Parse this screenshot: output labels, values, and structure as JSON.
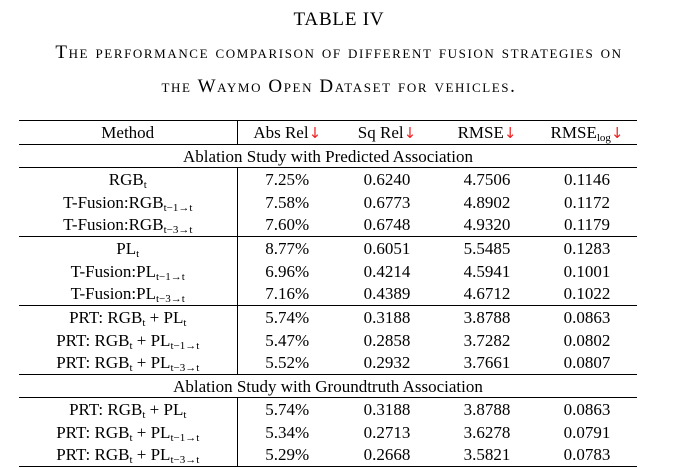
{
  "accent_red": "#ee2222",
  "title": "TABLE IV",
  "caption": {
    "line1": "The performance comparison of different fusion strategies on",
    "line2": "the Waymo Open Dataset for vehicles."
  },
  "table": {
    "columns": [
      {
        "label": "Method"
      },
      {
        "label": "Abs Rel",
        "arrow": "↓"
      },
      {
        "label": "Sq Rel",
        "arrow": "↓"
      },
      {
        "label": "RMSE",
        "arrow": "↓"
      },
      {
        "label": "RMSE",
        "sub": "log",
        "arrow": "↓"
      }
    ],
    "rows": [
      {
        "type": "section",
        "label": "Ablation Study with Predicted Association"
      },
      {
        "type": "data",
        "method": [
          [
            "RGB"
          ],
          [
            "t",
            "sub"
          ]
        ],
        "values": [
          "7.25%",
          "0.6240",
          "4.7506",
          "0.1146"
        ]
      },
      {
        "type": "data",
        "method": [
          [
            "T-Fusion:RGB"
          ],
          [
            "t−1→t",
            "sub"
          ]
        ],
        "values": [
          "7.58%",
          "0.6773",
          "4.8902",
          "0.1172"
        ]
      },
      {
        "type": "data",
        "method": [
          [
            "T-Fusion:RGB"
          ],
          [
            "t−3→t",
            "sub"
          ]
        ],
        "values": [
          "7.60%",
          "0.6748",
          "4.9320",
          "0.1179"
        ],
        "rule_below": true
      },
      {
        "type": "data",
        "method": [
          [
            "PL"
          ],
          [
            "t",
            "sub"
          ]
        ],
        "values": [
          "8.77%",
          "0.6051",
          "5.5485",
          "0.1283"
        ]
      },
      {
        "type": "data",
        "method": [
          [
            "T-Fusion:PL"
          ],
          [
            "t−1→t",
            "sub"
          ]
        ],
        "values": [
          "6.96%",
          "0.4214",
          "4.5941",
          "0.1001"
        ]
      },
      {
        "type": "data",
        "method": [
          [
            "T-Fusion:PL"
          ],
          [
            "t−3→t",
            "sub"
          ]
        ],
        "values": [
          "7.16%",
          "0.4389",
          "4.6712",
          "0.1022"
        ],
        "rule_below": true
      },
      {
        "type": "data",
        "method": [
          [
            "PRT: RGB"
          ],
          [
            "t",
            "sub"
          ],
          [
            " + PL"
          ],
          [
            "t",
            "sub"
          ]
        ],
        "values": [
          "5.74%",
          "0.3188",
          "3.8788",
          "0.0863"
        ]
      },
      {
        "type": "data",
        "method": [
          [
            "PRT: RGB"
          ],
          [
            "t",
            "sub"
          ],
          [
            " + PL"
          ],
          [
            "t−1→t",
            "sub"
          ]
        ],
        "values": [
          "5.47%",
          "0.2858",
          "3.7282",
          "0.0802"
        ],
        "bold": true
      },
      {
        "type": "data",
        "method": [
          [
            "PRT: RGB"
          ],
          [
            "t",
            "sub"
          ],
          [
            " + PL"
          ],
          [
            "t−3→t",
            "sub"
          ]
        ],
        "values": [
          "5.52%",
          "0.2932",
          "3.7661",
          "0.0807"
        ],
        "rule_below": true
      },
      {
        "type": "section",
        "label": "Ablation Study with Groundtruth Association"
      },
      {
        "type": "data",
        "method": [
          [
            "PRT: RGB"
          ],
          [
            "t",
            "sub"
          ],
          [
            " + PL"
          ],
          [
            "t",
            "sub"
          ]
        ],
        "values": [
          "5.74%",
          "0.3188",
          "3.8788",
          "0.0863"
        ]
      },
      {
        "type": "data",
        "method": [
          [
            "PRT: RGB"
          ],
          [
            "t",
            "sub"
          ],
          [
            " + PL"
          ],
          [
            "t−1→t",
            "sub"
          ]
        ],
        "values": [
          "5.34%",
          "0.2713",
          "3.6278",
          "0.0791"
        ]
      },
      {
        "type": "data",
        "method": [
          [
            "PRT: RGB"
          ],
          [
            "t",
            "sub"
          ],
          [
            " + PL"
          ],
          [
            "t−3→t",
            "sub"
          ]
        ],
        "values": [
          "5.29%",
          "0.2668",
          "3.5821",
          "0.0783"
        ],
        "bold": true
      }
    ]
  }
}
